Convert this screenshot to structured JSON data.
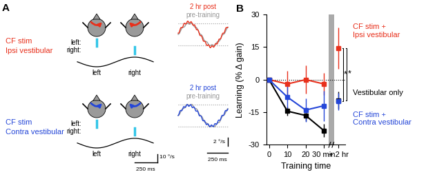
{
  "panel_a": {
    "label": "A",
    "rows": [
      {
        "stim": "CF stim",
        "vestibular": "Ipsi vestibular",
        "color": "#e8301c",
        "left_label": "left:",
        "right_label": "right:",
        "stimulus_left": "left",
        "stimulus_right": "right",
        "trace_post": "2 hr post",
        "trace_pre": "pre-training"
      },
      {
        "stim": "CF stim",
        "vestibular": "Contra vestibular",
        "color": "#2446d8",
        "left_label": "left:",
        "right_label": "right:",
        "stimulus_left": "left",
        "stimulus_right": "right",
        "trace_post": "2 hr post",
        "trace_pre": "pre-training"
      }
    ],
    "stimulus_scale": {
      "velocity": "10 °/s",
      "time": "250 ms"
    },
    "trace_scale": {
      "velocity": "2 °/s",
      "time": "250 ms"
    }
  },
  "chart_data": {
    "type": "line",
    "label": "B",
    "x_label": "Training time",
    "y_label": "Learning (% Δ gain)",
    "x": [
      0,
      10,
      20,
      30,
      34,
      38
    ],
    "xlim": [
      -1.5,
      41.5
    ],
    "ylim": [
      -30,
      30
    ],
    "xticks": [
      0,
      10,
      20,
      {
        "value": 30,
        "label": "30 min"
      },
      {
        "value": 38,
        "label": "+ 2 hr"
      }
    ],
    "yticks": [
      -30,
      -15,
      0,
      15,
      30
    ],
    "marker": "s",
    "line_style": "solid",
    "series": [
      {
        "name": "CF stim +\nIpsi vestibular",
        "color": "#e8301c",
        "values": [
          0,
          -2,
          0,
          -2,
          null,
          14.5
        ],
        "errors": [
          0,
          6,
          6.5,
          5,
          null,
          9.5
        ]
      },
      {
        "name": "Vestibular only",
        "color": "#000000",
        "values": [
          0,
          -14.5,
          -16.5,
          -23.5,
          null,
          -9.5
        ],
        "errors": [
          0,
          2,
          2.5,
          3,
          null,
          4
        ]
      },
      {
        "name": "CF stim +\nContra vestibular",
        "color": "#2446d8",
        "values": [
          0,
          -8,
          -14,
          -12,
          null,
          -10
        ],
        "errors": [
          0,
          5,
          5.5,
          7,
          null,
          4
        ]
      }
    ],
    "significance": [
      {
        "between": [
          0,
          1
        ],
        "label": "*"
      },
      {
        "between": [
          0,
          2
        ],
        "label": "*"
      }
    ]
  }
}
